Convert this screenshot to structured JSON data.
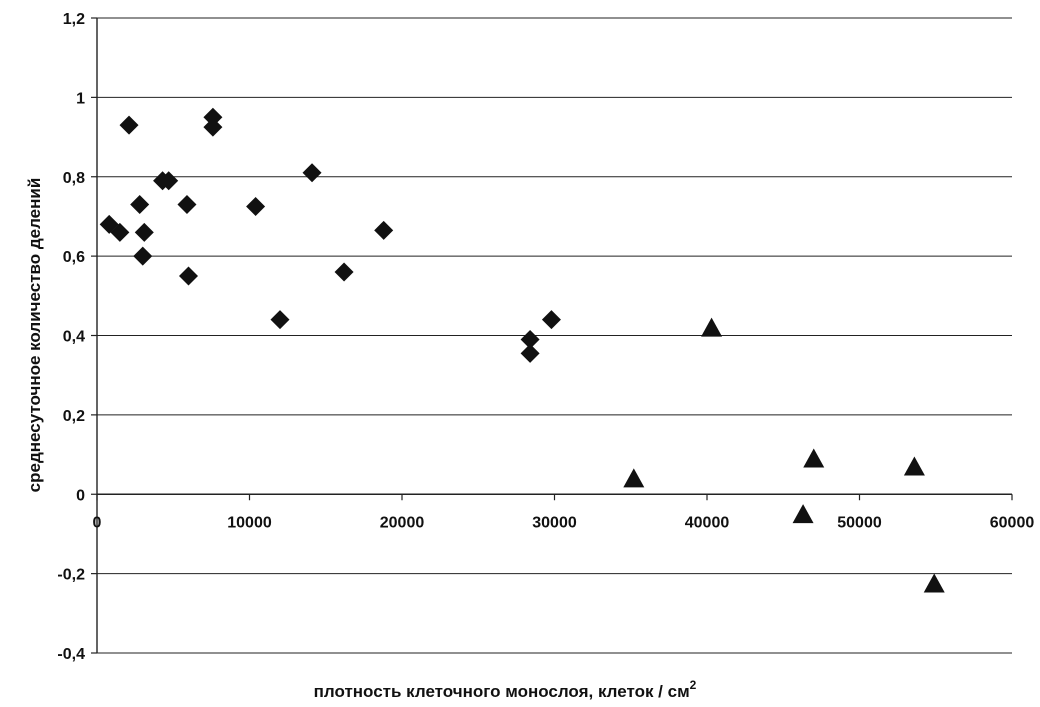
{
  "chart_data": {
    "type": "scatter",
    "xlabel": "плотность клеточного монослоя, клеток / см",
    "xlabel_superscript": "2",
    "ylabel": "среднесуточное количество делений",
    "xlim": [
      0,
      60000
    ],
    "ylim": [
      -0.4,
      1.2
    ],
    "x_ticks": [
      0,
      10000,
      20000,
      30000,
      40000,
      50000,
      60000
    ],
    "x_tick_labels": [
      "0",
      "10000",
      "20000",
      "30000",
      "40000",
      "50000",
      "60000"
    ],
    "y_ticks": [
      1.2,
      1.0,
      0.8,
      0.6,
      0.4,
      0.2,
      0.0,
      -0.2,
      -0.4
    ],
    "y_tick_labels": [
      "1,2",
      "1",
      "0,8",
      "0,6",
      "0,4",
      "0,2",
      "0",
      "-0,2",
      "-0,4"
    ],
    "grid": "horizontal",
    "colors": {
      "marker": "#111111",
      "grid": "#222222"
    },
    "series": [
      {
        "marker": "diamond",
        "points": [
          {
            "x": 800,
            "y": 0.68
          },
          {
            "x": 1500,
            "y": 0.66
          },
          {
            "x": 2100,
            "y": 0.93
          },
          {
            "x": 2800,
            "y": 0.73
          },
          {
            "x": 3100,
            "y": 0.66
          },
          {
            "x": 3000,
            "y": 0.6
          },
          {
            "x": 4300,
            "y": 0.79
          },
          {
            "x": 4700,
            "y": 0.79
          },
          {
            "x": 5900,
            "y": 0.73
          },
          {
            "x": 6000,
            "y": 0.55
          },
          {
            "x": 7600,
            "y": 0.95
          },
          {
            "x": 7600,
            "y": 0.925
          },
          {
            "x": 10400,
            "y": 0.725
          },
          {
            "x": 12000,
            "y": 0.44
          },
          {
            "x": 14100,
            "y": 0.81
          },
          {
            "x": 16200,
            "y": 0.56
          },
          {
            "x": 18800,
            "y": 0.665
          },
          {
            "x": 28400,
            "y": 0.39
          },
          {
            "x": 28400,
            "y": 0.355
          },
          {
            "x": 29800,
            "y": 0.44
          }
        ]
      },
      {
        "marker": "triangle",
        "points": [
          {
            "x": 35200,
            "y": 0.04
          },
          {
            "x": 40300,
            "y": 0.42
          },
          {
            "x": 46300,
            "y": -0.05
          },
          {
            "x": 47000,
            "y": 0.09
          },
          {
            "x": 53600,
            "y": 0.07
          },
          {
            "x": 54900,
            "y": -0.225
          }
        ]
      }
    ]
  }
}
